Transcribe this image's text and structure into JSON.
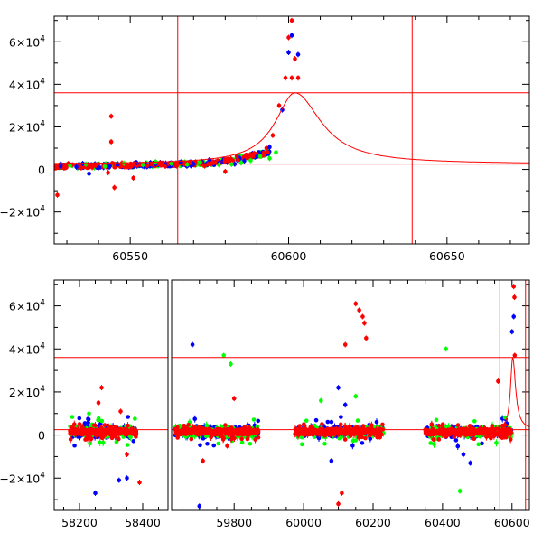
{
  "chart_data": [
    {
      "type": "scatter",
      "panel": "top",
      "xlim": [
        60526,
        60676
      ],
      "ylim": [
        -35000,
        72000
      ],
      "x_ticks": [
        60550,
        60600,
        60650
      ],
      "x_tick_labels": [
        "60550",
        "60600",
        "60650"
      ],
      "y_ticks": [
        -20000,
        0,
        20000,
        40000,
        60000
      ],
      "y_tick_labels": [
        {
          "base": "−2×10",
          "exp": "4"
        },
        {
          "base": "0",
          "exp": ""
        },
        {
          "base": "2×10",
          "exp": "4"
        },
        {
          "base": "4×10",
          "exp": "4"
        },
        {
          "base": "6×10",
          "exp": "4"
        }
      ],
      "grid": false,
      "hlines": [
        36000,
        2500
      ],
      "vlines": [
        60565,
        60639
      ],
      "model_curve": {
        "t0": 60602,
        "peak": 36000,
        "baseline": 2500,
        "rise_tau": 7.5,
        "decay_tau": 10
      },
      "series": [
        {
          "color": "#ff0000",
          "x": [
            60527,
            60530,
            60533,
            60536,
            60539,
            60542,
            60545,
            60548,
            60551,
            60554,
            60557,
            60560,
            60563,
            60566,
            60569,
            60572,
            60575,
            60578,
            60581,
            60584,
            60587,
            60590,
            60593,
            60595,
            60597,
            60599,
            60600,
            60601,
            60602,
            60603
          ],
          "y": [
            1500,
            1800,
            2000,
            1700,
            2200,
            1900,
            2300,
            2100,
            2500,
            2400,
            2600,
            2800,
            3000,
            2900,
            3200,
            3100,
            3600,
            3400,
            4000,
            4500,
            5500,
            7000,
            10000,
            16000,
            30000,
            43000,
            62000,
            70000,
            52000,
            43000
          ]
        },
        {
          "color": "#ff0000",
          "x": [
            60527,
            60544,
            60544,
            60545,
            60543,
            60551,
            60580,
            60601
          ],
          "y": [
            -12000,
            25000,
            13000,
            -8500,
            -1500,
            -4000,
            -1000,
            43000
          ]
        },
        {
          "color": "#0000ff",
          "x": [
            60528,
            60533,
            60535,
            60537,
            60540,
            60546,
            60552,
            60558,
            60563,
            60566,
            60570,
            60575,
            60578,
            60583,
            60586,
            60590,
            60594,
            60598,
            60600,
            60601,
            60603
          ],
          "y": [
            1500,
            1200,
            2800,
            -2000,
            800,
            2200,
            3200,
            2500,
            2000,
            3500,
            2500,
            4500,
            3000,
            2500,
            4000,
            6000,
            10500,
            28000,
            55000,
            63000,
            54000
          ]
        },
        {
          "color": "#00ff00",
          "x": [
            60531,
            60536,
            60542,
            60548,
            60554,
            60558,
            60563,
            60568,
            60572,
            60578,
            60582,
            60585,
            60588,
            60591,
            60594,
            60596
          ],
          "y": [
            1800,
            2500,
            1400,
            2900,
            2200,
            3600,
            2800,
            2300,
            3400,
            2200,
            2400,
            3100,
            4200,
            6200,
            5200,
            8000
          ]
        }
      ]
    },
    {
      "type": "scatter",
      "panel": "bottom",
      "broken_x_axis": true,
      "segments": [
        {
          "xlim": [
            58120,
            58480
          ],
          "x_ticks": [
            58200,
            58400
          ],
          "x_tick_labels": [
            "58200",
            "58400"
          ]
        },
        {
          "xlim": [
            59620,
            60650
          ],
          "x_ticks": [
            59800,
            60000,
            60200,
            60400,
            60600
          ],
          "x_tick_labels": [
            "59800",
            "60000",
            "60200",
            "60400",
            "60600"
          ]
        }
      ],
      "ylim": [
        -35000,
        72000
      ],
      "y_ticks": [
        -20000,
        0,
        20000,
        40000,
        60000
      ],
      "y_tick_labels": [
        {
          "base": "−2×10",
          "exp": "4"
        },
        {
          "base": "0",
          "exp": ""
        },
        {
          "base": "2×10",
          "exp": "4"
        },
        {
          "base": "4×10",
          "exp": "4"
        },
        {
          "base": "6×10",
          "exp": "4"
        }
      ],
      "grid": false,
      "hlines": [
        36000,
        2500
      ],
      "vlines": [
        60565,
        60639
      ],
      "model_curve": {
        "t0": 60602,
        "peak": 36000,
        "baseline": 2500,
        "rise_tau": 7.5,
        "decay_tau": 10
      },
      "seasons": [
        {
          "x_start": 58170,
          "x_end": 58380
        },
        {
          "x_start": 59630,
          "x_end": 59870
        },
        {
          "x_start": 59975,
          "x_end": 60230
        },
        {
          "x_start": 60350,
          "x_end": 60600
        }
      ],
      "outliers": [
        {
          "color": "#ff0000",
          "x": [
            58270,
            58260,
            58330,
            58350,
            58390,
            59710,
            59780,
            59800,
            60150,
            60160,
            60170,
            60175,
            60180,
            60120,
            60100,
            60110,
            60560,
            60605,
            60607,
            60608
          ],
          "y": [
            22000,
            15000,
            11000,
            -9000,
            -22000,
            -12000,
            -5000,
            17000,
            61000,
            58000,
            55000,
            52000,
            45000,
            42000,
            -32000,
            -27000,
            25000,
            69000,
            64000,
            37000
          ]
        },
        {
          "color": "#0000ff",
          "x": [
            58250,
            58350,
            58325,
            59680,
            59700,
            60080,
            60100,
            60120,
            60460,
            60480,
            60600,
            60605
          ],
          "y": [
            -27000,
            -20000,
            -21000,
            42000,
            -33000,
            -12000,
            22000,
            14000,
            -9000,
            -13000,
            48000,
            55000
          ]
        },
        {
          "color": "#00ff00",
          "x": [
            58230,
            59770,
            59790,
            60050,
            60150,
            60410,
            60450
          ],
          "y": [
            10000,
            37000,
            33000,
            16000,
            18000,
            40000,
            -26000
          ]
        }
      ]
    }
  ]
}
